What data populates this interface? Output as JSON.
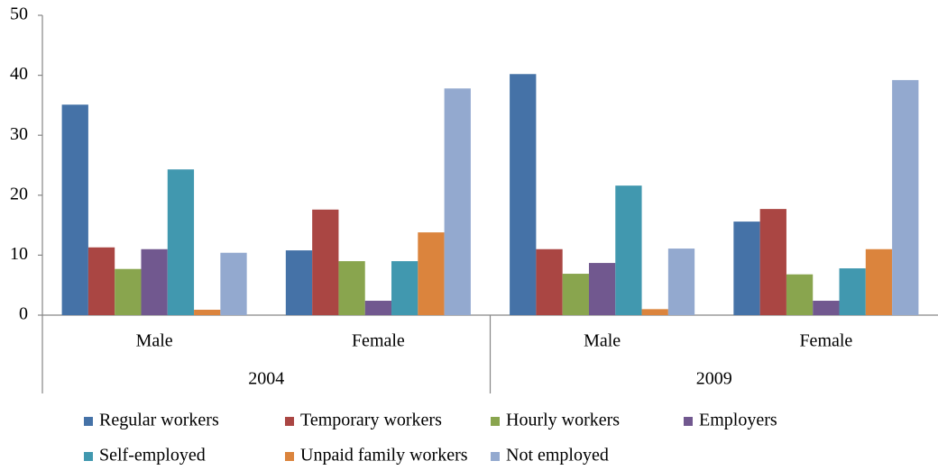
{
  "chart_data": {
    "type": "bar",
    "groups": [
      {
        "name": "2004",
        "categories": [
          "Male",
          "Female"
        ]
      },
      {
        "name": "2009",
        "categories": [
          "Male",
          "Female"
        ]
      }
    ],
    "series": [
      {
        "name": "Regular workers",
        "color": "#4572a7",
        "values": [
          35.1,
          10.8,
          40.2,
          15.6
        ]
      },
      {
        "name": "Temporary workers",
        "color": "#aa4643",
        "values": [
          11.3,
          17.6,
          11.0,
          17.7
        ]
      },
      {
        "name": "Hourly workers",
        "color": "#89a54e",
        "values": [
          7.7,
          9.0,
          6.9,
          6.8
        ]
      },
      {
        "name": "Employers",
        "color": "#71588f",
        "values": [
          11.0,
          2.4,
          8.7,
          2.4
        ]
      },
      {
        "name": "Self-employed",
        "color": "#4198af",
        "values": [
          24.3,
          9.0,
          21.6,
          7.8
        ]
      },
      {
        "name": "Unpaid family workers",
        "color": "#db843d",
        "values": [
          0.9,
          13.8,
          1.0,
          11.0
        ]
      },
      {
        "name": "Not employed",
        "color": "#93a9cf",
        "values": [
          10.4,
          37.8,
          11.1,
          39.2
        ]
      }
    ],
    "ylim": [
      0,
      50
    ],
    "yticks": [
      0,
      10,
      20,
      30,
      40,
      50
    ],
    "legend": "bottom"
  }
}
